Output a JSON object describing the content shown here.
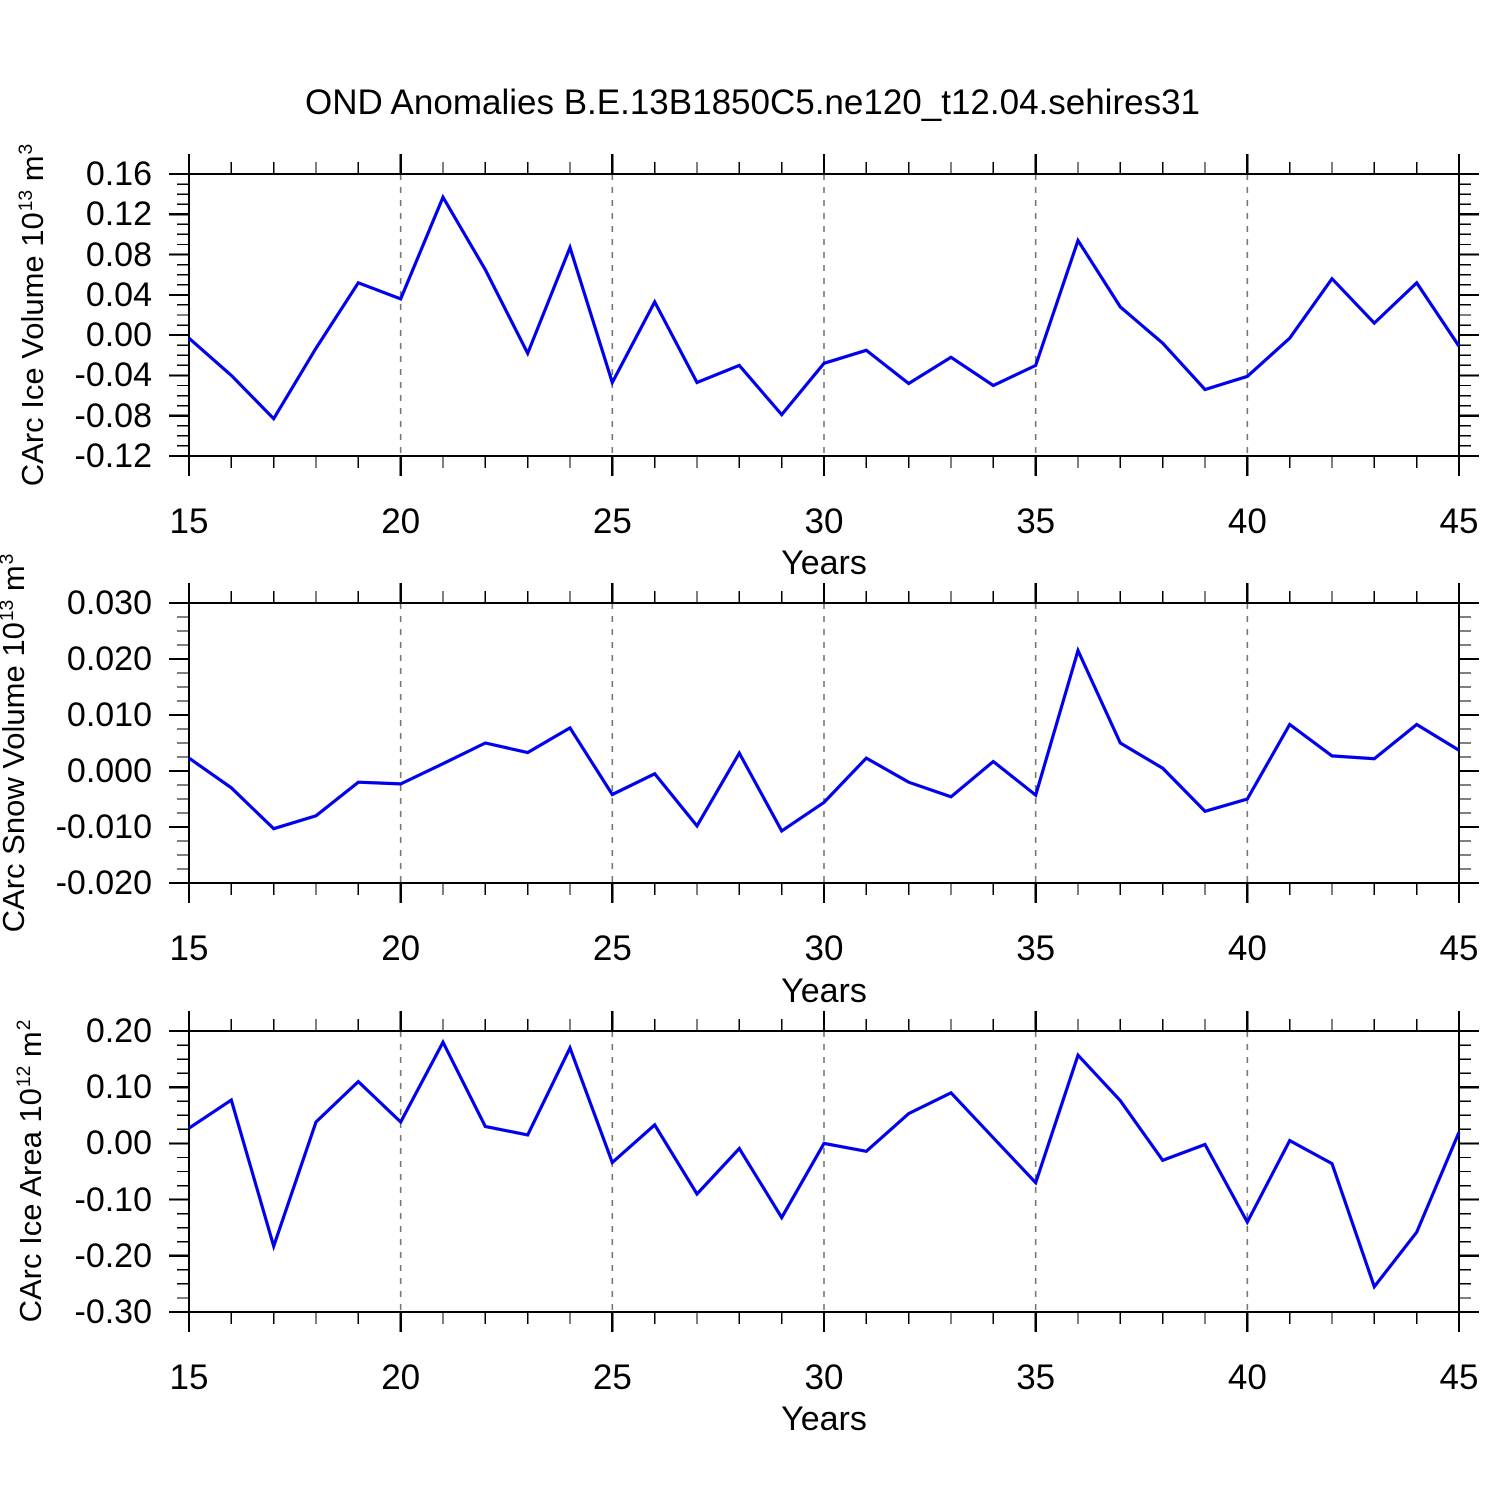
{
  "title": "OND Anomalies B.E.13B1850C5.ne120_t12.04.sehires31",
  "colors": {
    "line": "#0000EE",
    "grid": "#787878",
    "axis": "#000000",
    "background": "#FFFFFF"
  },
  "chart_data": [
    {
      "type": "line",
      "name": "carc-ice-volume",
      "ylabel": "CArc Ice Volume 10^13 m^3",
      "ylabel_parts": [
        {
          "text": "CArc Ice Volume 10"
        },
        {
          "text": "13",
          "sup": true
        },
        {
          "text": " m"
        },
        {
          "text": "3",
          "sup": true
        }
      ],
      "xlabel": "Years",
      "xlim": [
        15,
        45
      ],
      "ylim": [
        -0.12,
        0.16
      ],
      "x_major_ticks": [
        15,
        20,
        25,
        30,
        35,
        40,
        45
      ],
      "x_minor_step": 1,
      "grid_x": [
        20,
        25,
        30,
        35,
        40
      ],
      "y_tick_values": [
        0.16,
        0.12,
        0.08,
        0.04,
        0.0,
        -0.04,
        -0.08,
        -0.12
      ],
      "y_tick_labels": [
        "0.16",
        "0.12",
        "0.08",
        "0.04",
        "0.00",
        "-0.04",
        "-0.08",
        "-0.12"
      ],
      "y_minor_step": 0.01,
      "grid_on": "x-dashed",
      "legend": "none",
      "years": [
        15,
        16,
        17,
        18,
        19,
        20,
        21,
        22,
        23,
        24,
        25,
        26,
        27,
        28,
        29,
        30,
        31,
        32,
        33,
        34,
        35,
        36,
        37,
        38,
        39,
        40,
        41,
        42,
        43,
        44,
        45
      ],
      "values": [
        -0.003,
        -0.04,
        -0.083,
        -0.013,
        0.052,
        0.036,
        0.137,
        0.065,
        -0.018,
        0.087,
        -0.047,
        0.033,
        -0.047,
        -0.03,
        -0.079,
        -0.028,
        -0.015,
        -0.048,
        -0.022,
        -0.05,
        -0.03,
        0.094,
        0.028,
        -0.008,
        -0.054,
        -0.041,
        -0.003,
        0.056,
        0.012,
        0.052,
        -0.011
      ]
    },
    {
      "type": "line",
      "name": "carc-snow-volume",
      "ylabel": "CArc Snow Volume 10^13 m^3",
      "ylabel_parts": [
        {
          "text": "CArc Snow Volume 10"
        },
        {
          "text": "13",
          "sup": true
        },
        {
          "text": " m"
        },
        {
          "text": "3",
          "sup": true
        }
      ],
      "xlabel": "Years",
      "xlim": [
        15,
        45
      ],
      "ylim": [
        -0.02,
        0.03
      ],
      "x_major_ticks": [
        15,
        20,
        25,
        30,
        35,
        40,
        45
      ],
      "x_minor_step": 1,
      "grid_x": [
        20,
        25,
        30,
        35,
        40
      ],
      "y_tick_values": [
        0.03,
        0.02,
        0.01,
        0.0,
        -0.01,
        -0.02
      ],
      "y_tick_labels": [
        "0.030",
        "0.020",
        "0.010",
        "0.000",
        "-0.010",
        "-0.020"
      ],
      "y_minor_step": 0.0025,
      "grid_on": "x-dashed",
      "legend": "none",
      "years": [
        15,
        16,
        17,
        18,
        19,
        20,
        21,
        22,
        23,
        24,
        25,
        26,
        27,
        28,
        29,
        30,
        31,
        32,
        33,
        34,
        35,
        36,
        37,
        38,
        39,
        40,
        41,
        42,
        43,
        44,
        45
      ],
      "values": [
        0.0023,
        -0.003,
        -0.0103,
        -0.008,
        -0.002,
        -0.0023,
        0.0013,
        0.005,
        0.0033,
        0.0077,
        -0.0042,
        -0.0005,
        -0.0098,
        0.0032,
        -0.0107,
        -0.0056,
        0.0023,
        -0.002,
        -0.0046,
        0.0017,
        -0.0043,
        0.0215,
        0.005,
        0.0005,
        -0.0072,
        -0.005,
        0.0083,
        0.0027,
        0.0022,
        0.0083,
        0.0037
      ]
    },
    {
      "type": "line",
      "name": "carc-ice-area",
      "ylabel": "CArc Ice Area 10^12 m^2",
      "ylabel_parts": [
        {
          "text": "CArc Ice Area 10"
        },
        {
          "text": "12",
          "sup": true
        },
        {
          "text": " m"
        },
        {
          "text": "2",
          "sup": true
        }
      ],
      "xlabel": "Years",
      "xlim": [
        15,
        45
      ],
      "ylim": [
        -0.3,
        0.2
      ],
      "x_major_ticks": [
        15,
        20,
        25,
        30,
        35,
        40,
        45
      ],
      "x_minor_step": 1,
      "grid_x": [
        20,
        25,
        30,
        35,
        40
      ],
      "y_tick_values": [
        0.2,
        0.1,
        0.0,
        -0.1,
        -0.2,
        -0.3
      ],
      "y_tick_labels": [
        "0.20",
        "0.10",
        "0.00",
        "-0.10",
        "-0.20",
        "-0.30"
      ],
      "y_minor_step": 0.025,
      "grid_on": "x-dashed",
      "legend": "none",
      "years": [
        15,
        16,
        17,
        18,
        19,
        20,
        21,
        22,
        23,
        24,
        25,
        26,
        27,
        28,
        29,
        30,
        31,
        32,
        33,
        34,
        35,
        36,
        37,
        38,
        39,
        40,
        41,
        42,
        43,
        44,
        45
      ],
      "values": [
        0.027,
        0.077,
        -0.183,
        0.038,
        0.11,
        0.038,
        0.18,
        0.03,
        0.015,
        0.17,
        -0.034,
        0.033,
        -0.09,
        -0.009,
        -0.132,
        0.0,
        -0.014,
        0.053,
        0.09,
        0.01,
        -0.07,
        0.157,
        0.076,
        -0.03,
        -0.002,
        -0.14,
        0.005,
        -0.036,
        -0.255,
        -0.158,
        0.02
      ]
    }
  ]
}
